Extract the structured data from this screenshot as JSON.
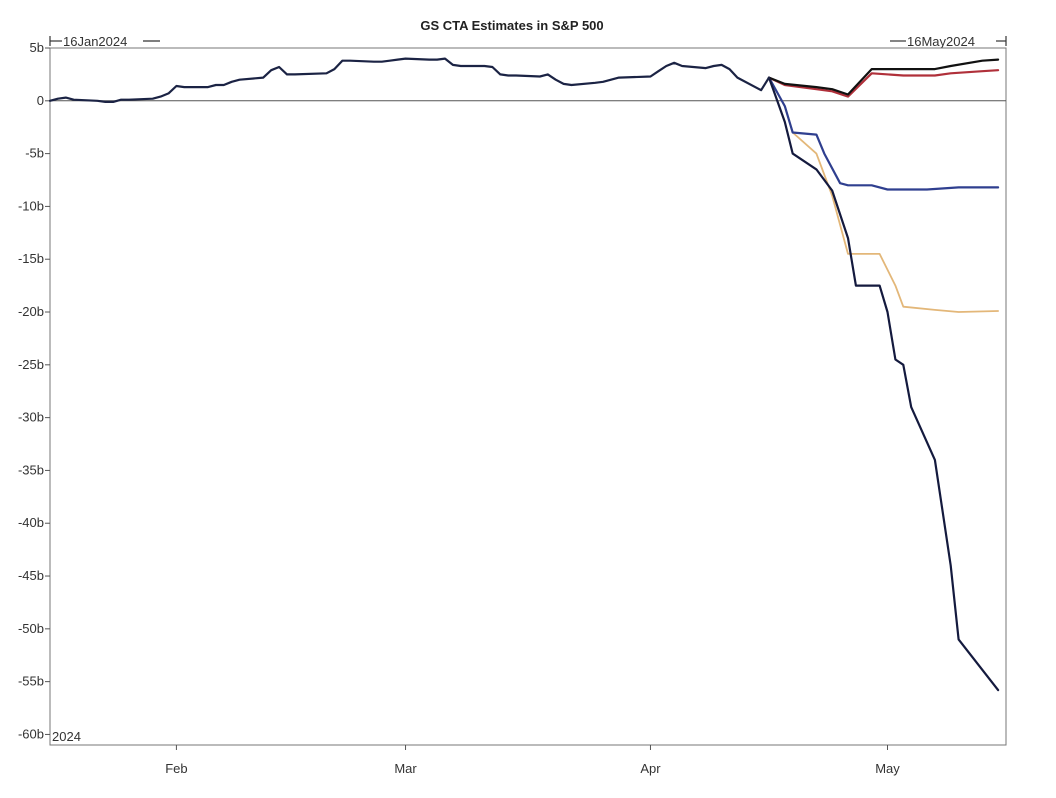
{
  "chart_data": {
    "type": "line",
    "title": "GS CTA Estimates in S&P 500",
    "start_label": "16Jan2024",
    "end_label": "16May2024",
    "year_label": "2024",
    "xlabel": "",
    "ylabel": "",
    "x_range": [
      "2024-01-16",
      "2024-05-16"
    ],
    "ylim": [
      -61,
      5
    ],
    "y_ticks": [
      5,
      0,
      -5,
      -10,
      -15,
      -20,
      -25,
      -30,
      -35,
      -40,
      -45,
      -50,
      -55,
      -60
    ],
    "y_tick_labels": [
      "5b",
      "0",
      "-5b",
      "-10b",
      "-15b",
      "-20b",
      "-25b",
      "-30b",
      "-35b",
      "-40b",
      "-45b",
      "-50b",
      "-55b",
      "-60b"
    ],
    "x_ticks": [
      "2024-02-01",
      "2024-03-01",
      "2024-04-01",
      "2024-05-01"
    ],
    "x_tick_labels": [
      "Feb",
      "Mar",
      "Apr",
      "May"
    ],
    "zero_line": true,
    "grid": false,
    "legend": "none",
    "colors": {
      "history": "#1b2344",
      "red": "#b0303a",
      "black": "#111111",
      "blue": "#2f3f8f",
      "tan": "#e3b779",
      "navy": "#141a3e",
      "axis": "#555555"
    },
    "series": [
      {
        "color_key": "history",
        "points": [
          [
            "2024-01-16",
            0.0
          ],
          [
            "2024-01-17",
            0.2
          ],
          [
            "2024-01-18",
            0.3
          ],
          [
            "2024-01-19",
            0.1
          ],
          [
            "2024-01-22",
            0.0
          ],
          [
            "2024-01-23",
            -0.1
          ],
          [
            "2024-01-24",
            -0.1
          ],
          [
            "2024-01-25",
            0.1
          ],
          [
            "2024-01-26",
            0.1
          ],
          [
            "2024-01-29",
            0.2
          ],
          [
            "2024-01-30",
            0.4
          ],
          [
            "2024-01-31",
            0.7
          ],
          [
            "2024-02-01",
            1.4
          ],
          [
            "2024-02-02",
            1.3
          ],
          [
            "2024-02-05",
            1.3
          ],
          [
            "2024-02-06",
            1.5
          ],
          [
            "2024-02-07",
            1.5
          ],
          [
            "2024-02-08",
            1.8
          ],
          [
            "2024-02-09",
            2.0
          ],
          [
            "2024-02-12",
            2.2
          ],
          [
            "2024-02-13",
            2.9
          ],
          [
            "2024-02-14",
            3.2
          ],
          [
            "2024-02-15",
            2.5
          ],
          [
            "2024-02-16",
            2.5
          ],
          [
            "2024-02-20",
            2.6
          ],
          [
            "2024-02-21",
            3.0
          ],
          [
            "2024-02-22",
            3.8
          ],
          [
            "2024-02-23",
            3.8
          ],
          [
            "2024-02-26",
            3.7
          ],
          [
            "2024-02-27",
            3.7
          ],
          [
            "2024-02-28",
            3.8
          ],
          [
            "2024-02-29",
            3.9
          ],
          [
            "2024-03-01",
            4.0
          ],
          [
            "2024-03-04",
            3.9
          ],
          [
            "2024-03-05",
            3.9
          ],
          [
            "2024-03-06",
            4.0
          ],
          [
            "2024-03-07",
            3.4
          ],
          [
            "2024-03-08",
            3.3
          ],
          [
            "2024-03-11",
            3.3
          ],
          [
            "2024-03-12",
            3.2
          ],
          [
            "2024-03-13",
            2.5
          ],
          [
            "2024-03-14",
            2.4
          ],
          [
            "2024-03-15",
            2.4
          ],
          [
            "2024-03-18",
            2.3
          ],
          [
            "2024-03-19",
            2.5
          ],
          [
            "2024-03-20",
            2.0
          ],
          [
            "2024-03-21",
            1.6
          ],
          [
            "2024-03-22",
            1.5
          ],
          [
            "2024-03-25",
            1.7
          ],
          [
            "2024-03-26",
            1.8
          ],
          [
            "2024-03-27",
            2.0
          ],
          [
            "2024-03-28",
            2.2
          ],
          [
            "2024-04-01",
            2.3
          ],
          [
            "2024-04-02",
            2.8
          ],
          [
            "2024-04-03",
            3.3
          ],
          [
            "2024-04-04",
            3.6
          ],
          [
            "2024-04-05",
            3.3
          ],
          [
            "2024-04-08",
            3.1
          ],
          [
            "2024-04-09",
            3.3
          ],
          [
            "2024-04-10",
            3.4
          ],
          [
            "2024-04-11",
            3.0
          ],
          [
            "2024-04-12",
            2.2
          ],
          [
            "2024-04-15",
            1.0
          ],
          [
            "2024-04-16",
            2.2
          ]
        ]
      },
      {
        "color_key": "black",
        "points": [
          [
            "2024-04-16",
            2.2
          ],
          [
            "2024-04-18",
            1.6
          ],
          [
            "2024-04-22",
            1.3
          ],
          [
            "2024-04-24",
            1.1
          ],
          [
            "2024-04-26",
            0.6
          ],
          [
            "2024-04-29",
            3.0
          ],
          [
            "2024-05-03",
            3.0
          ],
          [
            "2024-05-07",
            3.0
          ],
          [
            "2024-05-09",
            3.3
          ],
          [
            "2024-05-13",
            3.8
          ],
          [
            "2024-05-15",
            3.9
          ]
        ]
      },
      {
        "color_key": "red",
        "points": [
          [
            "2024-04-16",
            2.2
          ],
          [
            "2024-04-18",
            1.5
          ],
          [
            "2024-04-22",
            1.1
          ],
          [
            "2024-04-24",
            0.9
          ],
          [
            "2024-04-26",
            0.4
          ],
          [
            "2024-04-29",
            2.6
          ],
          [
            "2024-05-03",
            2.4
          ],
          [
            "2024-05-07",
            2.4
          ],
          [
            "2024-05-09",
            2.6
          ],
          [
            "2024-05-13",
            2.8
          ],
          [
            "2024-05-15",
            2.9
          ]
        ]
      },
      {
        "color_key": "blue",
        "points": [
          [
            "2024-04-16",
            2.2
          ],
          [
            "2024-04-18",
            -0.5
          ],
          [
            "2024-04-19",
            -3.0
          ],
          [
            "2024-04-22",
            -3.2
          ],
          [
            "2024-04-23",
            -5.0
          ],
          [
            "2024-04-25",
            -7.8
          ],
          [
            "2024-04-26",
            -8.0
          ],
          [
            "2024-04-29",
            -8.0
          ],
          [
            "2024-05-01",
            -8.4
          ],
          [
            "2024-05-06",
            -8.4
          ],
          [
            "2024-05-10",
            -8.2
          ],
          [
            "2024-05-15",
            -8.2
          ]
        ]
      },
      {
        "color_key": "tan",
        "points": [
          [
            "2024-04-16",
            2.2
          ],
          [
            "2024-04-18",
            -0.5
          ],
          [
            "2024-04-19",
            -3.0
          ],
          [
            "2024-04-22",
            -5.0
          ],
          [
            "2024-04-24",
            -9.0
          ],
          [
            "2024-04-26",
            -14.5
          ],
          [
            "2024-04-30",
            -14.5
          ],
          [
            "2024-05-02",
            -17.5
          ],
          [
            "2024-05-03",
            -19.5
          ],
          [
            "2024-05-07",
            -19.8
          ],
          [
            "2024-05-10",
            -20.0
          ],
          [
            "2024-05-15",
            -19.9
          ]
        ]
      },
      {
        "color_key": "navy",
        "points": [
          [
            "2024-04-16",
            2.2
          ],
          [
            "2024-04-18",
            -2.0
          ],
          [
            "2024-04-19",
            -5.0
          ],
          [
            "2024-04-22",
            -6.5
          ],
          [
            "2024-04-24",
            -8.5
          ],
          [
            "2024-04-26",
            -13.0
          ],
          [
            "2024-04-27",
            -17.5
          ],
          [
            "2024-04-30",
            -17.5
          ],
          [
            "2024-05-01",
            -20.0
          ],
          [
            "2024-05-02",
            -24.5
          ],
          [
            "2024-05-03",
            -25.0
          ],
          [
            "2024-05-04",
            -29.0
          ],
          [
            "2024-05-07",
            -34.0
          ],
          [
            "2024-05-09",
            -44.0
          ],
          [
            "2024-05-10",
            -51.0
          ],
          [
            "2024-05-15",
            -55.8
          ]
        ]
      }
    ]
  }
}
